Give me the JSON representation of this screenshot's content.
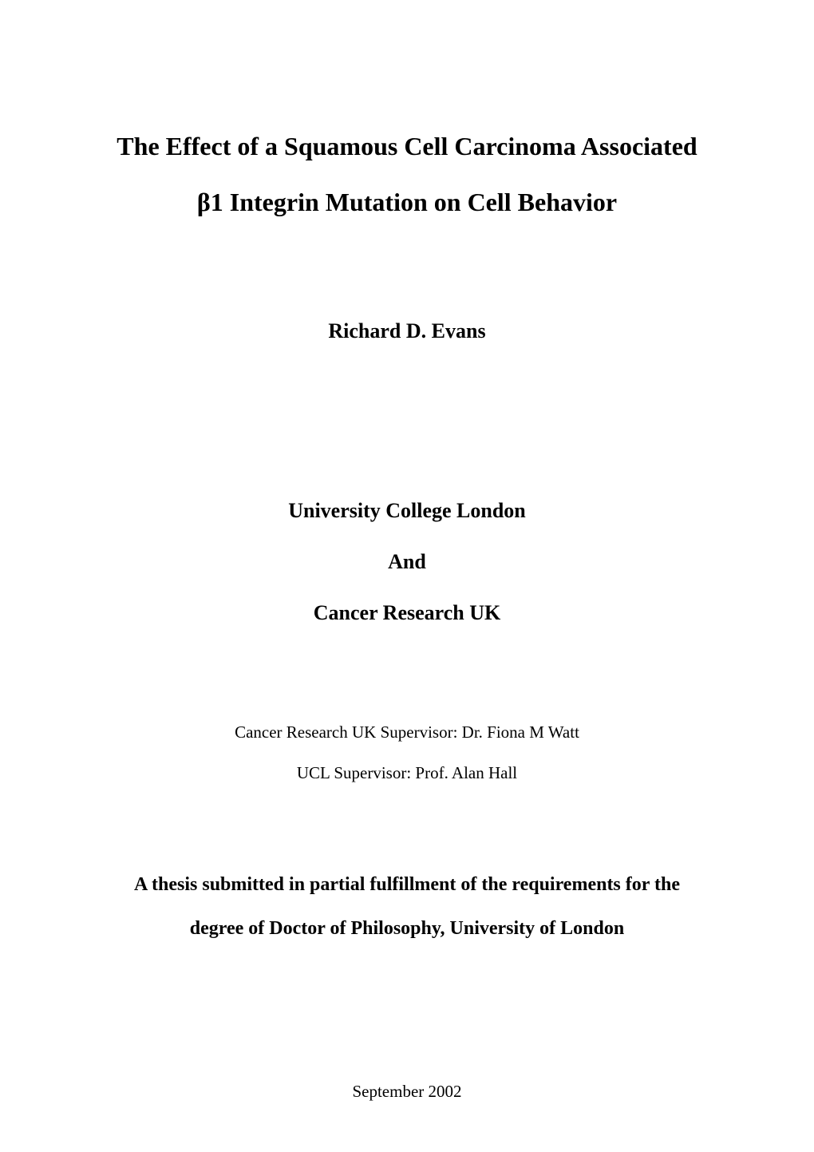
{
  "page": {
    "background_color": "#ffffff",
    "text_color": "#000000",
    "font_family": "Times New Roman"
  },
  "title": {
    "line1": "The Effect of a Squamous Cell Carcinoma Associated",
    "line2": "β1 Integrin Mutation on Cell Behavior",
    "fontsize": 32,
    "fontweight": "bold"
  },
  "author": {
    "name": "Richard D. Evans",
    "fontsize": 26,
    "fontweight": "bold"
  },
  "affiliations": {
    "line1": "University College London",
    "and": "And",
    "line2": "Cancer Research UK",
    "fontsize": 26,
    "fontweight": "bold"
  },
  "supervisors": {
    "cruk": "Cancer Research UK Supervisor: Dr. Fiona M Watt",
    "ucl": "UCL Supervisor: Prof. Alan Hall",
    "fontsize": 21,
    "fontweight": "normal"
  },
  "submission": {
    "line1": "A thesis submitted in partial fulfillment of the requirements for the",
    "line2": "degree of Doctor of Philosophy, University of London",
    "fontsize": 24,
    "fontweight": "bold"
  },
  "date": {
    "text": "September 2002",
    "fontsize": 21,
    "fontweight": "normal"
  }
}
